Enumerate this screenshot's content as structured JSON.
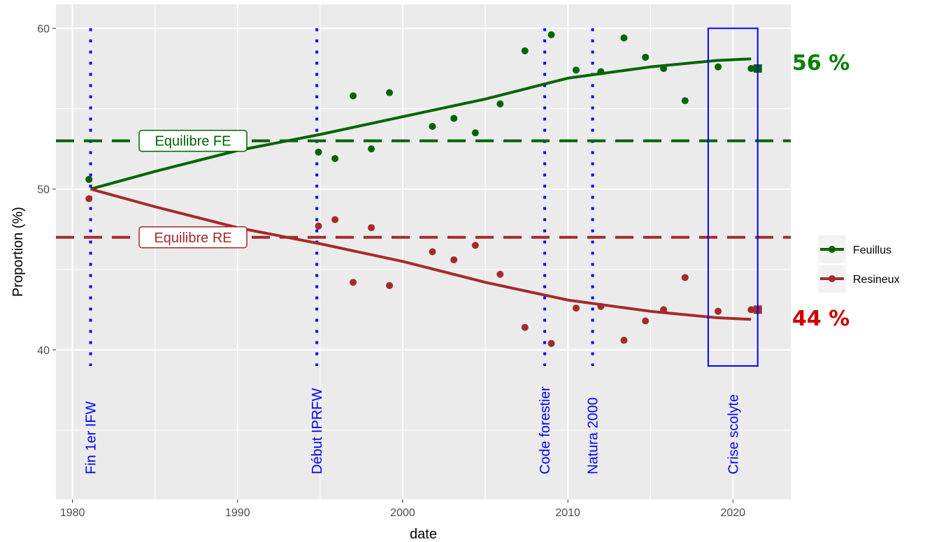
{
  "chart_data": {
    "type": "scatter",
    "xlabel": "date",
    "ylabel": "Proportion (%)",
    "xlim": [
      1979,
      2023.5
    ],
    "ylim": [
      30.7,
      61.5
    ],
    "xticks": [
      1980,
      1990,
      2000,
      2010,
      2020
    ],
    "yticks": [
      40,
      50,
      60
    ],
    "grid": true,
    "legend_position": "right",
    "series": [
      {
        "name": "Feuillus",
        "color": "#006400",
        "points": [
          [
            1981.0,
            50.6
          ],
          [
            1994.9,
            52.3
          ],
          [
            1995.9,
            51.9
          ],
          [
            1997.0,
            55.8
          ],
          [
            1998.1,
            52.5
          ],
          [
            1999.2,
            56.0
          ],
          [
            2001.8,
            53.9
          ],
          [
            2003.1,
            54.4
          ],
          [
            2004.4,
            53.5
          ],
          [
            2005.9,
            55.3
          ],
          [
            2007.4,
            58.6
          ],
          [
            2009.0,
            59.6
          ],
          [
            2010.5,
            57.4
          ],
          [
            2012.0,
            57.3
          ],
          [
            2013.4,
            59.4
          ],
          [
            2014.7,
            58.2
          ],
          [
            2015.8,
            57.5
          ],
          [
            2017.1,
            55.5
          ],
          [
            2019.1,
            57.6
          ],
          [
            2021.1,
            57.5
          ]
        ],
        "fit": [
          [
            1981.1,
            50.0
          ],
          [
            1985,
            51.1
          ],
          [
            1990,
            52.4
          ],
          [
            1995,
            53.4
          ],
          [
            2000,
            54.5
          ],
          [
            2005,
            55.6
          ],
          [
            2010,
            56.9
          ],
          [
            2015,
            57.6
          ],
          [
            2019,
            58.0
          ],
          [
            2021.1,
            58.1
          ]
        ],
        "end_square": [
          2021.5,
          57.5
        ]
      },
      {
        "name": "Resineux",
        "color": "#A52A2A",
        "points": [
          [
            1981.0,
            49.4
          ],
          [
            1994.9,
            47.7
          ],
          [
            1995.9,
            48.1
          ],
          [
            1997.0,
            44.2
          ],
          [
            1998.1,
            47.6
          ],
          [
            1999.2,
            44.0
          ],
          [
            2001.8,
            46.1
          ],
          [
            2003.1,
            45.6
          ],
          [
            2004.4,
            46.5
          ],
          [
            2005.9,
            44.7
          ],
          [
            2007.4,
            41.4
          ],
          [
            2009.0,
            40.4
          ],
          [
            2010.5,
            42.6
          ],
          [
            2012.0,
            42.7
          ],
          [
            2013.4,
            40.6
          ],
          [
            2014.7,
            41.8
          ],
          [
            2015.8,
            42.5
          ],
          [
            2017.1,
            44.5
          ],
          [
            2019.1,
            42.4
          ],
          [
            2021.1,
            42.5
          ]
        ],
        "fit": [
          [
            1981.1,
            50.0
          ],
          [
            1985,
            48.9
          ],
          [
            1990,
            47.6
          ],
          [
            1995,
            46.6
          ],
          [
            2000,
            45.5
          ],
          [
            2005,
            44.2
          ],
          [
            2010,
            43.1
          ],
          [
            2015,
            42.4
          ],
          [
            2019,
            42.0
          ],
          [
            2021.1,
            41.9
          ]
        ],
        "end_square": [
          2021.5,
          42.5
        ]
      }
    ],
    "hlines": [
      {
        "y": 53,
        "color": "#006400",
        "label": "Equilibre FE",
        "label_x": 1987.3
      },
      {
        "y": 47,
        "color": "#A52A2A",
        "label": "Equilibre RE",
        "label_x": 1987.3
      }
    ],
    "vlines": [
      {
        "x": 1981.1,
        "label": "Fin 1er IFW"
      },
      {
        "x": 1994.8,
        "label": "Début IPRFW"
      },
      {
        "x": 2008.6,
        "label": "Code forestier"
      },
      {
        "x": 2011.5,
        "label": "Natura 2000"
      }
    ],
    "event_color": "#0000FF",
    "highlight_box": {
      "x0": 2018.5,
      "x1": 2021.5,
      "y0": 39,
      "y1": 60,
      "label": "Crise scolyte"
    },
    "annotations": [
      {
        "text": "56 %",
        "color": "#008000",
        "anchor_y": 57.9
      },
      {
        "text": "44 %",
        "color": "#CC0000",
        "anchor_y": 42.0
      }
    ]
  }
}
